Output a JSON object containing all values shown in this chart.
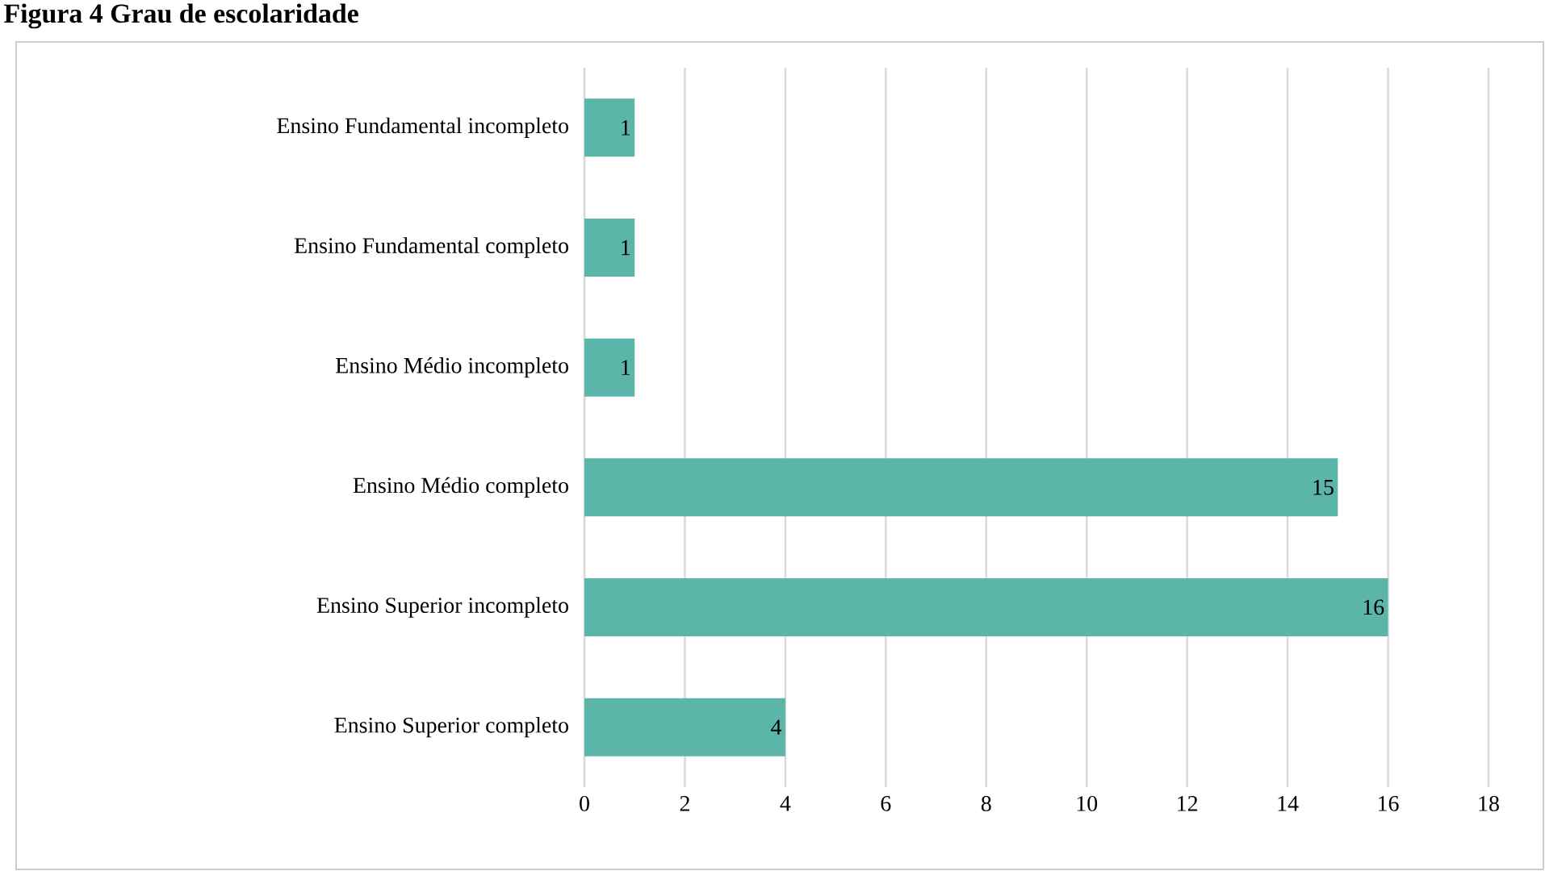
{
  "chart_data": {
    "type": "bar",
    "orientation": "horizontal",
    "title": "Figura 4 Grau de escolaridade",
    "categories": [
      "Ensino Fundamental incompleto",
      "Ensino Fundamental completo",
      "Ensino Médio incompleto",
      "Ensino Médio completo",
      "Ensino Superior incompleto",
      "Ensino Superior completo"
    ],
    "values": [
      1,
      1,
      1,
      15,
      16,
      4
    ],
    "color": "#5bb5a9",
    "xlim": [
      0,
      18
    ],
    "xticks": [
      0,
      2,
      4,
      6,
      8,
      10,
      12,
      14,
      16,
      18
    ],
    "grid": "x",
    "data_labels": true
  }
}
